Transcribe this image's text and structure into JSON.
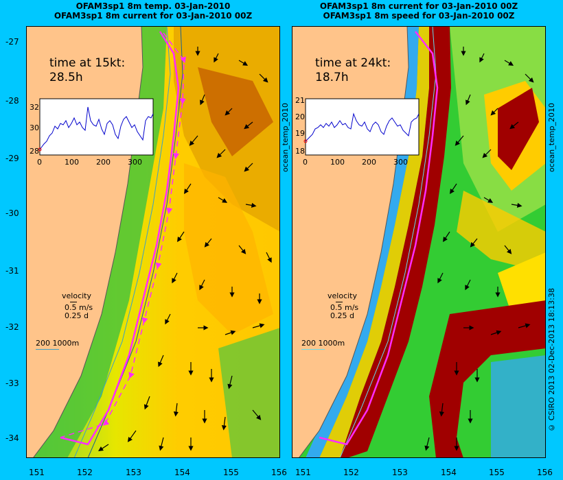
{
  "left_panel": {
    "title_line1": "OFAM3sp1 8m temp. 03-Jan-2010",
    "title_line2": "OFAM3sp1 8m current for 03-Jan-2010 00Z",
    "time_label": "time at 15kt:",
    "time_value": "28.5h",
    "inset_yticks": [
      "32",
      "30",
      "28"
    ],
    "inset_xticks": [
      "0",
      "100",
      "200",
      "300"
    ],
    "velocity_label": "velocity",
    "velocity_speed": "0.5 m/s",
    "velocity_days": "0.25 d",
    "contour_label": "200  1000m",
    "colorbar_label": "ocean_temp_2010"
  },
  "right_panel": {
    "title_line1": "OFAM3sp1 8m current for 03-Jan-2010 00Z",
    "title_line2": "OFAM3sp1 8m speed for 03-Jan-2010 00Z",
    "time_label": "time at 24kt:",
    "time_value": "18.7h",
    "inset_yticks": [
      "21",
      "20",
      "19",
      "18"
    ],
    "inset_xticks": [
      "0",
      "100",
      "200",
      "300"
    ],
    "velocity_label": "velocity",
    "velocity_speed": "0.5 m/s",
    "velocity_days": "0.25 d",
    "contour_label": "200  1000m",
    "colorbar_label": "ocean_temp_2010"
  },
  "lat_ticks": [
    "-27",
    "-28",
    "-29",
    "-30",
    "-31",
    "-32",
    "-33",
    "-34"
  ],
  "lon_ticks": [
    "151",
    "152",
    "153",
    "154",
    "155",
    "156"
  ],
  "credit": "© CSIRO 2013   02-Dec-2013 18:13:38",
  "colors": {
    "background": "#00c8ff",
    "land": "#ffc48a",
    "track": "#ff2bff",
    "current_core": "#a00000",
    "warm": "#e0a000",
    "mid": "#ffe000"
  }
}
